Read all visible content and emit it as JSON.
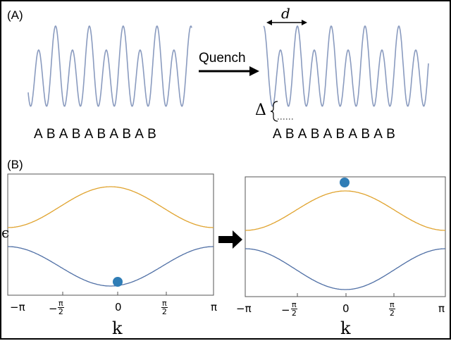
{
  "panel_a": {
    "label": "(A)",
    "quench_label": "Quench",
    "left_sites": "A B A B A B A B A B",
    "right_sites": "A B A B A B A B A B",
    "period_label": "d",
    "amplitude_label": "Δ"
  },
  "panel_b": {
    "label": "(B)",
    "energy_label": "ϵ",
    "x_axis_label": "k",
    "ticks": {
      "minus_pi": "−π",
      "minus_half": "−",
      "pi_num": "π",
      "half_den": "2",
      "zero": "0",
      "pi": "π"
    }
  },
  "colors": {
    "wave": "#8a9bbf",
    "upper_band": "#e0a32e",
    "lower_band": "#4f6fa5",
    "particle": "#2f7db6"
  }
}
